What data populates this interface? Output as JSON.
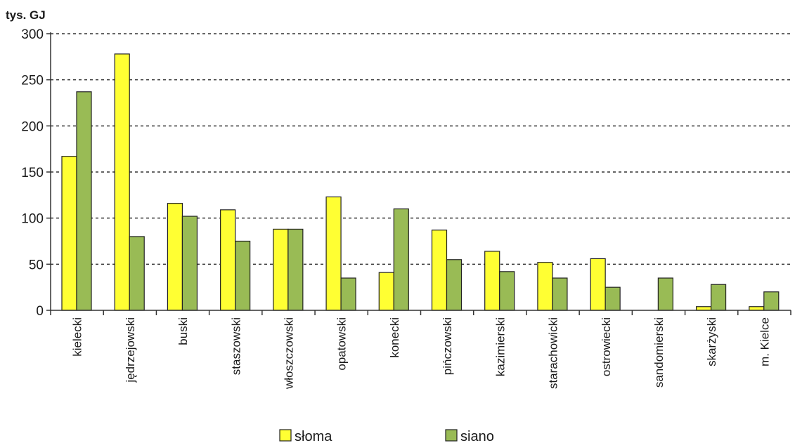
{
  "chart_data": {
    "type": "bar",
    "unit_label": "tys. GJ",
    "categories": [
      "kielecki",
      "jędrzejowski",
      "buski",
      "staszowski",
      "włoszczowski",
      "opatowski",
      "konecki",
      "pińczowski",
      "kazimierski",
      "starachowicki",
      "ostrowiecki",
      "sandomierski",
      "skarżyski",
      "m. Kielce"
    ],
    "series": [
      {
        "name": "słoma",
        "color": "#ffff33",
        "values": [
          167,
          278,
          116,
          109,
          88,
          123,
          41,
          87,
          64,
          52,
          56,
          0,
          4,
          4
        ]
      },
      {
        "name": "siano",
        "color": "#99bb55",
        "values": [
          237,
          80,
          102,
          75,
          88,
          35,
          110,
          55,
          42,
          35,
          25,
          35,
          28,
          20
        ]
      }
    ],
    "y_ticks": [
      0,
      50,
      100,
      150,
      200,
      250,
      300
    ],
    "ylim": [
      0,
      300
    ],
    "grid": true,
    "legend_position": "bottom"
  }
}
